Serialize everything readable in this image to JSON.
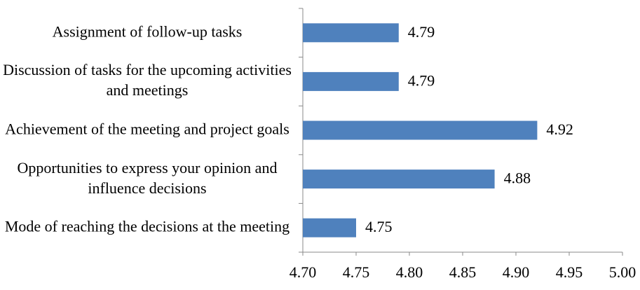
{
  "chart_data": {
    "type": "bar",
    "orientation": "horizontal",
    "categories": [
      "Assignment of follow-up tasks",
      "Discussion of tasks for the upcoming activities and meetings",
      "Achievement of the meeting and project goals",
      "Opportunities to express your opinion and influence decisions",
      "Mode of reaching the decisions at the meeting"
    ],
    "values": [
      4.79,
      4.79,
      4.92,
      4.88,
      4.75
    ],
    "color": "#4f81bd",
    "xlim": [
      4.7,
      5.0
    ],
    "xticks": [
      {
        "value": 4.7,
        "label": "4.70"
      },
      {
        "value": 4.75,
        "label": "4.75"
      },
      {
        "value": 4.8,
        "label": "4.80"
      },
      {
        "value": 4.85,
        "label": "4.85"
      },
      {
        "value": 4.9,
        "label": "4.90"
      },
      {
        "value": 4.95,
        "label": "4.95"
      },
      {
        "value": 5.0,
        "label": "5.00"
      }
    ],
    "grid": false
  }
}
